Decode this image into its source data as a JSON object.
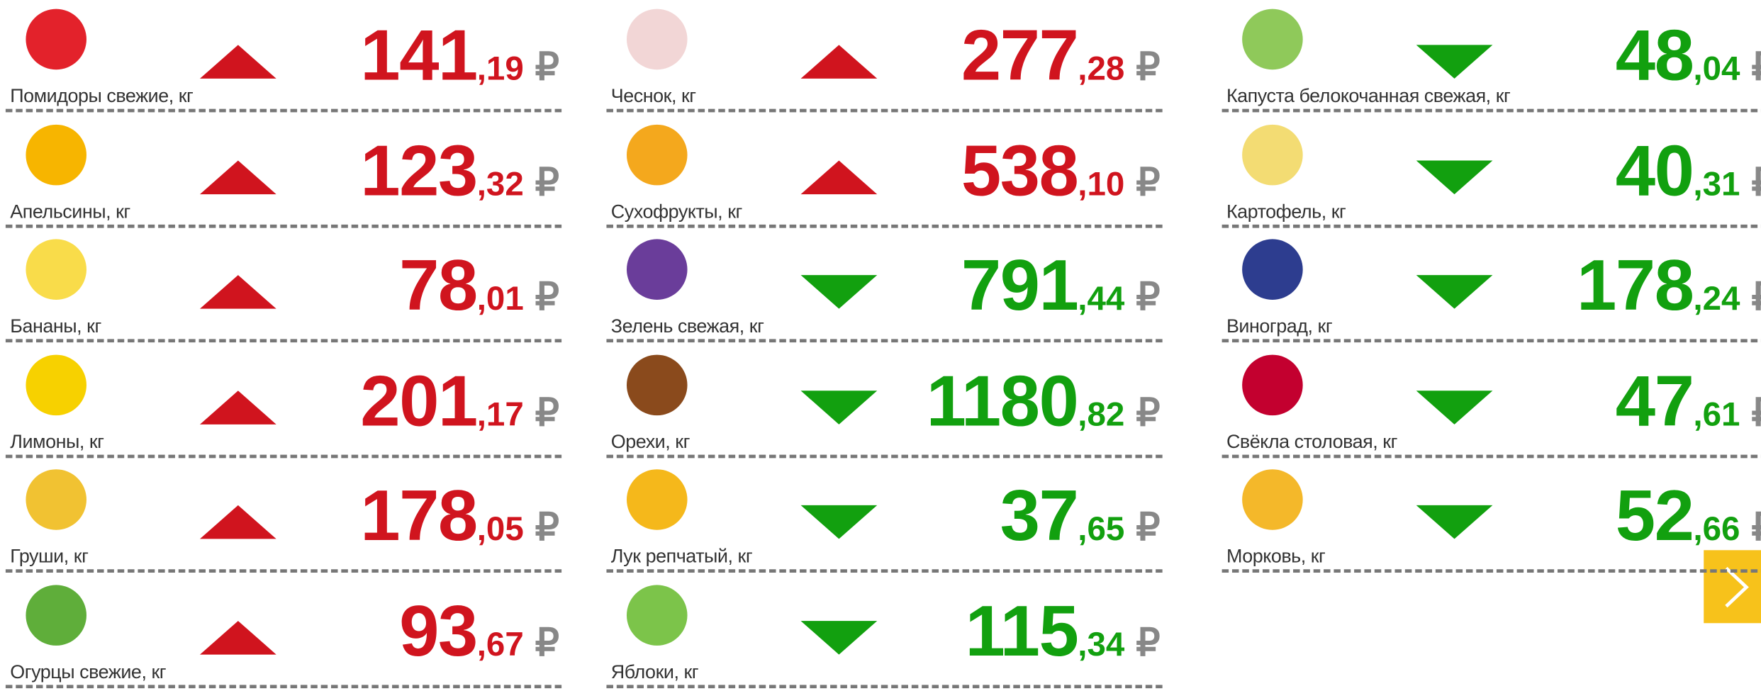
{
  "currency": "₽",
  "columns": [
    [
      {
        "name": "Помидоры свежие, кг",
        "int": "141",
        "dec": ",19",
        "dir": "up",
        "icon": "#e3222b"
      },
      {
        "name": "Апельсины, кг",
        "int": "123",
        "dec": ",32",
        "dir": "up",
        "icon": "#f7b500"
      },
      {
        "name": "Бананы, кг",
        "int": "78",
        "dec": ",01",
        "dir": "up",
        "icon": "#f9dc4a"
      },
      {
        "name": "Лимоны, кг",
        "int": "201",
        "dec": ",17",
        "dir": "up",
        "icon": "#f7d100"
      },
      {
        "name": "Груши, кг",
        "int": "178",
        "dec": ",05",
        "dir": "up",
        "icon": "#f1c232"
      },
      {
        "name": "Огурцы свежие, кг",
        "int": "93",
        "dec": ",67",
        "dir": "up",
        "icon": "#5fae3a"
      }
    ],
    [
      {
        "name": "Чеснок, кг",
        "int": "277",
        "dec": ",28",
        "dir": "up",
        "icon": "#f2d6d6"
      },
      {
        "name": "Сухофрукты, кг",
        "int": "538",
        "dec": ",10",
        "dir": "up",
        "icon": "#f4a81d"
      },
      {
        "name": "Зелень свежая, кг",
        "int": "791",
        "dec": ",44",
        "dir": "down",
        "icon": "#6a3d9a"
      },
      {
        "name": "Орехи, кг",
        "int": "1180",
        "dec": ",82",
        "dir": "down",
        "icon": "#8a4a1c"
      },
      {
        "name": "Лук репчатый, кг",
        "int": "37",
        "dec": ",65",
        "dir": "down",
        "icon": "#f5b81b"
      },
      {
        "name": "Яблоки, кг",
        "int": "115",
        "dec": ",34",
        "dir": "down",
        "icon": "#7cc44a"
      }
    ],
    [
      {
        "name": "Капуста белокочанная свежая, кг",
        "int": "48",
        "dec": ",04",
        "dir": "down",
        "icon": "#8fc95a"
      },
      {
        "name": "Картофель, кг",
        "int": "40",
        "dec": ",31",
        "dir": "down",
        "icon": "#f3dc73"
      },
      {
        "name": "Виноград, кг",
        "int": "178",
        "dec": ",24",
        "dir": "down",
        "icon": "#2d3d8f"
      },
      {
        "name": "Свёкла столовая, кг",
        "int": "47",
        "dec": ",61",
        "dir": "down",
        "icon": "#c3002f"
      },
      {
        "name": "Морковь, кг",
        "int": "52",
        "dec": ",66",
        "dir": "down",
        "icon": "#f4b82a"
      }
    ]
  ]
}
